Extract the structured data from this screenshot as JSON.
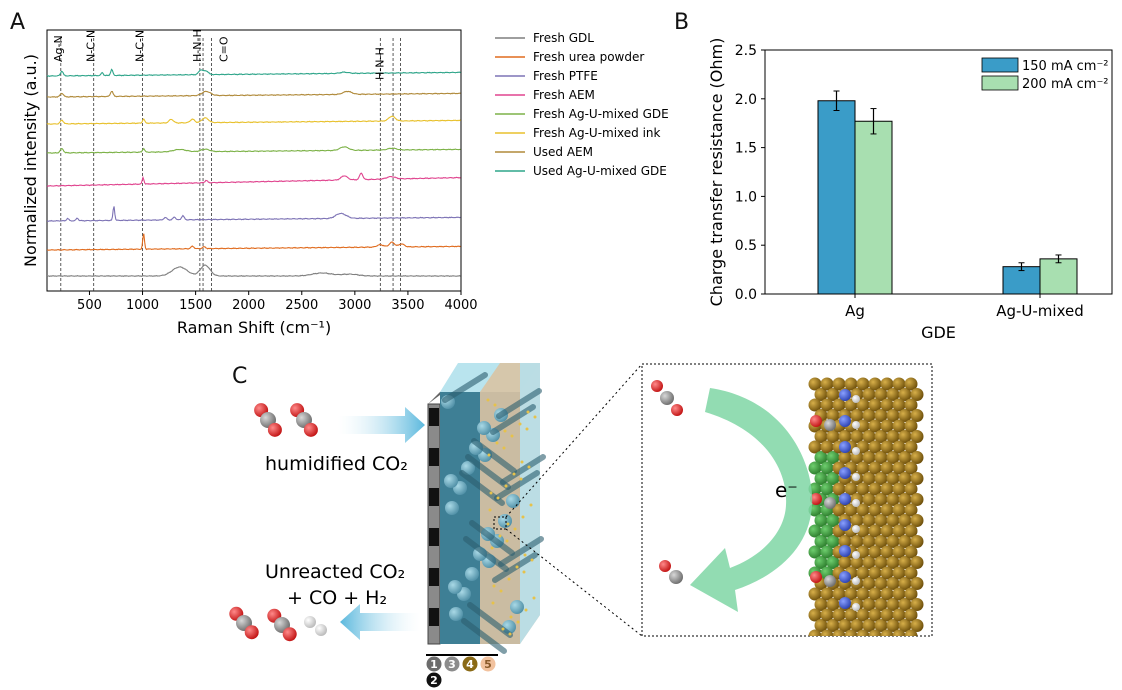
{
  "panel_labels": {
    "a": "A",
    "b": "B",
    "c": "C"
  },
  "colors": {
    "fresh_gdl": "#7f7f7f",
    "fresh_urea": "#e06c1f",
    "fresh_ptfe": "#7d73b5",
    "fresh_aem": "#e0458f",
    "fresh_gde": "#7db248",
    "fresh_ink": "#e8c12d",
    "used_aem": "#b08a3a",
    "used_gde": "#2fa58a",
    "bar_150": "#3a9cc8",
    "bar_200": "#a8dfb0",
    "ag_atom": "#8a6a16",
    "oxygen": "#e02020",
    "carbon": "#8c8c8c",
    "nitrogen": "#3a55c8",
    "hydrogen": "#ffffff",
    "flow_arrow": "#5ab8dd",
    "e_arrow": "#7fd6a4"
  },
  "chart_data": [
    {
      "type": "line",
      "id": "A",
      "xlabel": "Raman Shift (cm⁻¹)",
      "ylabel": "Normalized intensity (a.u.)",
      "xlim": [
        100,
        4000
      ],
      "xticks": [
        "500",
        "1000",
        "1500",
        "2000",
        "2500",
        "3000",
        "3500",
        "4000"
      ],
      "xtick_values": [
        500,
        1000,
        1500,
        2000,
        2500,
        3000,
        3500,
        4000
      ],
      "legend_position": "right",
      "grid": false,
      "series": [
        {
          "name": "Fresh GDL",
          "color_key": "fresh_gdl",
          "peaks": [
            [
              1350,
              1.5,
              70
            ],
            [
              1590,
              1.8,
              45
            ],
            [
              2690,
              0.5,
              90
            ],
            [
              2950,
              0.3,
              80
            ]
          ]
        },
        {
          "name": "Fresh urea powder",
          "color_key": "fresh_urea",
          "peaks": [
            [
              1010,
              2.6,
              8
            ],
            [
              1470,
              0.4,
              15
            ],
            [
              1580,
              0.3,
              15
            ],
            [
              3240,
              0.4,
              30
            ],
            [
              3350,
              0.8,
              25
            ],
            [
              3440,
              0.5,
              25
            ]
          ]
        },
        {
          "name": "Fresh PTFE",
          "color_key": "fresh_ptfe",
          "peaks": [
            [
              295,
              0.4,
              10
            ],
            [
              385,
              0.45,
              10
            ],
            [
              730,
              2.4,
              8
            ],
            [
              1215,
              0.4,
              15
            ],
            [
              1300,
              0.5,
              12
            ],
            [
              1380,
              0.7,
              12
            ],
            [
              2850,
              0.6,
              40
            ],
            [
              2900,
              0.4,
              40
            ]
          ]
        },
        {
          "name": "Fresh AEM",
          "color_key": "fresh_aem",
          "peaks": [
            [
              1005,
              1.1,
              8
            ],
            [
              1600,
              0.4,
              12
            ],
            [
              2900,
              0.7,
              30
            ],
            [
              3060,
              1.1,
              15
            ],
            [
              3340,
              0.4,
              40
            ]
          ]
        },
        {
          "name": "Fresh Ag-U-mixed GDE",
          "color_key": "fresh_gde",
          "peaks": [
            [
              240,
              0.7,
              15
            ],
            [
              1010,
              0.6,
              10
            ],
            [
              1350,
              0.4,
              60
            ],
            [
              1590,
              0.4,
              40
            ],
            [
              2900,
              0.6,
              40
            ],
            [
              3350,
              0.3,
              40
            ]
          ]
        },
        {
          "name": "Fresh Ag-U-mixed ink",
          "color_key": "fresh_ink",
          "peaks": [
            [
              240,
              0.6,
              15
            ],
            [
              1010,
              0.7,
              10
            ],
            [
              1270,
              0.6,
              20
            ],
            [
              1470,
              0.6,
              20
            ],
            [
              1590,
              0.8,
              30
            ],
            [
              3350,
              0.8,
              30
            ]
          ]
        },
        {
          "name": "Used AEM",
          "color_key": "used_aem",
          "peaks": [
            [
              240,
              0.6,
              15
            ],
            [
              710,
              0.9,
              12
            ],
            [
              1600,
              0.7,
              40
            ],
            [
              2930,
              0.5,
              40
            ]
          ]
        },
        {
          "name": "Used Ag-U-mixed GDE",
          "color_key": "used_gde",
          "peaks": [
            [
              240,
              0.8,
              12
            ],
            [
              620,
              0.5,
              10
            ],
            [
              710,
              1.0,
              10
            ],
            [
              1550,
              0.8,
              20
            ],
            [
              1600,
              0.6,
              20
            ],
            [
              2900,
              0.2,
              40
            ]
          ]
        }
      ],
      "annotations": [
        {
          "text": "Ag-N",
          "x": 230
        },
        {
          "text": "N-C-N",
          "x": 540
        },
        {
          "text": "N-C-N",
          "x": 1000
        },
        {
          "text": "H-N-H",
          "x": 1540
        },
        {
          "text": "C=O",
          "x": 1650
        },
        {
          "text": "H-N-H",
          "x": 3260
        }
      ],
      "ref_lines": [
        230,
        540,
        1000,
        1540,
        1570,
        1650,
        3240,
        3360,
        3430
      ]
    },
    {
      "type": "bar",
      "id": "B",
      "categories": [
        "Ag",
        "Ag-U-mixed"
      ],
      "xlabel": "GDE",
      "ylabel": "Charge transfer resistance (Ohm)",
      "ylim": [
        0,
        2.5
      ],
      "yticks": [
        "0.0",
        "0.5",
        "1.0",
        "1.5",
        "2.0",
        "2.5"
      ],
      "ytick_values": [
        0,
        0.5,
        1.0,
        1.5,
        2.0,
        2.5
      ],
      "legend_position": "top-right",
      "series": [
        {
          "name": "150 mA cm⁻²",
          "color_key": "bar_150",
          "values": [
            1.98,
            0.28
          ],
          "errors": [
            0.1,
            0.04
          ]
        },
        {
          "name": "200 mA cm⁻²",
          "color_key": "bar_200",
          "values": [
            1.77,
            0.36
          ],
          "errors": [
            0.13,
            0.04
          ]
        }
      ]
    }
  ],
  "schematic": {
    "inlet_label": "humidified CO₂",
    "outlet_label_line1": "Unreacted CO₂",
    "outlet_label_line2": "+ CO + H₂",
    "electron_label": "e⁻",
    "layer_numbers": [
      "1",
      "2",
      "3",
      "4",
      "5"
    ]
  }
}
